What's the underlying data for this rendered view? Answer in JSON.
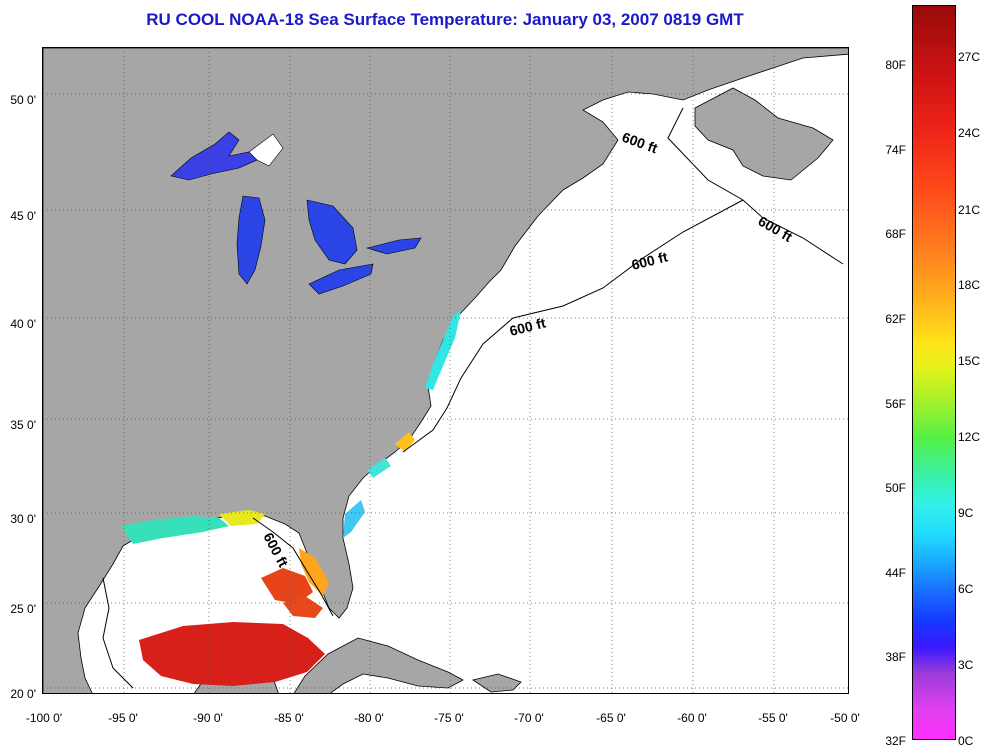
{
  "title": "RU COOL  NOAA-18  Sea Surface Temperature:  January 03, 2007 0819 GMT",
  "map": {
    "lat_labels": [
      "50 0'",
      "45 0'",
      "40 0'",
      "35 0'",
      "30 0'",
      "25 0'",
      "20 0'"
    ],
    "lon_labels": [
      "-100 0'",
      "-95 0'",
      "-90 0'",
      "-85 0'",
      "-80 0'",
      "-75 0'",
      "-70 0'",
      "-65 0'",
      "-60 0'",
      "-55 0'",
      "-50 0'"
    ],
    "lat_range": [
      20,
      53
    ],
    "lon_range": [
      -100,
      -50
    ],
    "grid": "dotted",
    "isobath_label": "600 ft",
    "colors": {
      "land": "#a6a6a6",
      "ocean_no_data": "#ffffff",
      "title": "#1a1ac8",
      "warm_sst": "#d8201a",
      "cold_lakes": "#2a44e6",
      "coastal_cyan": "#30e6e6"
    }
  },
  "colorbar": {
    "fahrenheit_labels": [
      "80F",
      "74F",
      "68F",
      "62F",
      "56F",
      "50F",
      "44F",
      "38F",
      "32F"
    ],
    "celsius_labels": [
      "27C",
      "24C",
      "21C",
      "18C",
      "15C",
      "12C",
      "9C",
      "6C",
      "3C",
      "0C"
    ],
    "min_celsius": 0,
    "max_celsius": 28.5
  }
}
